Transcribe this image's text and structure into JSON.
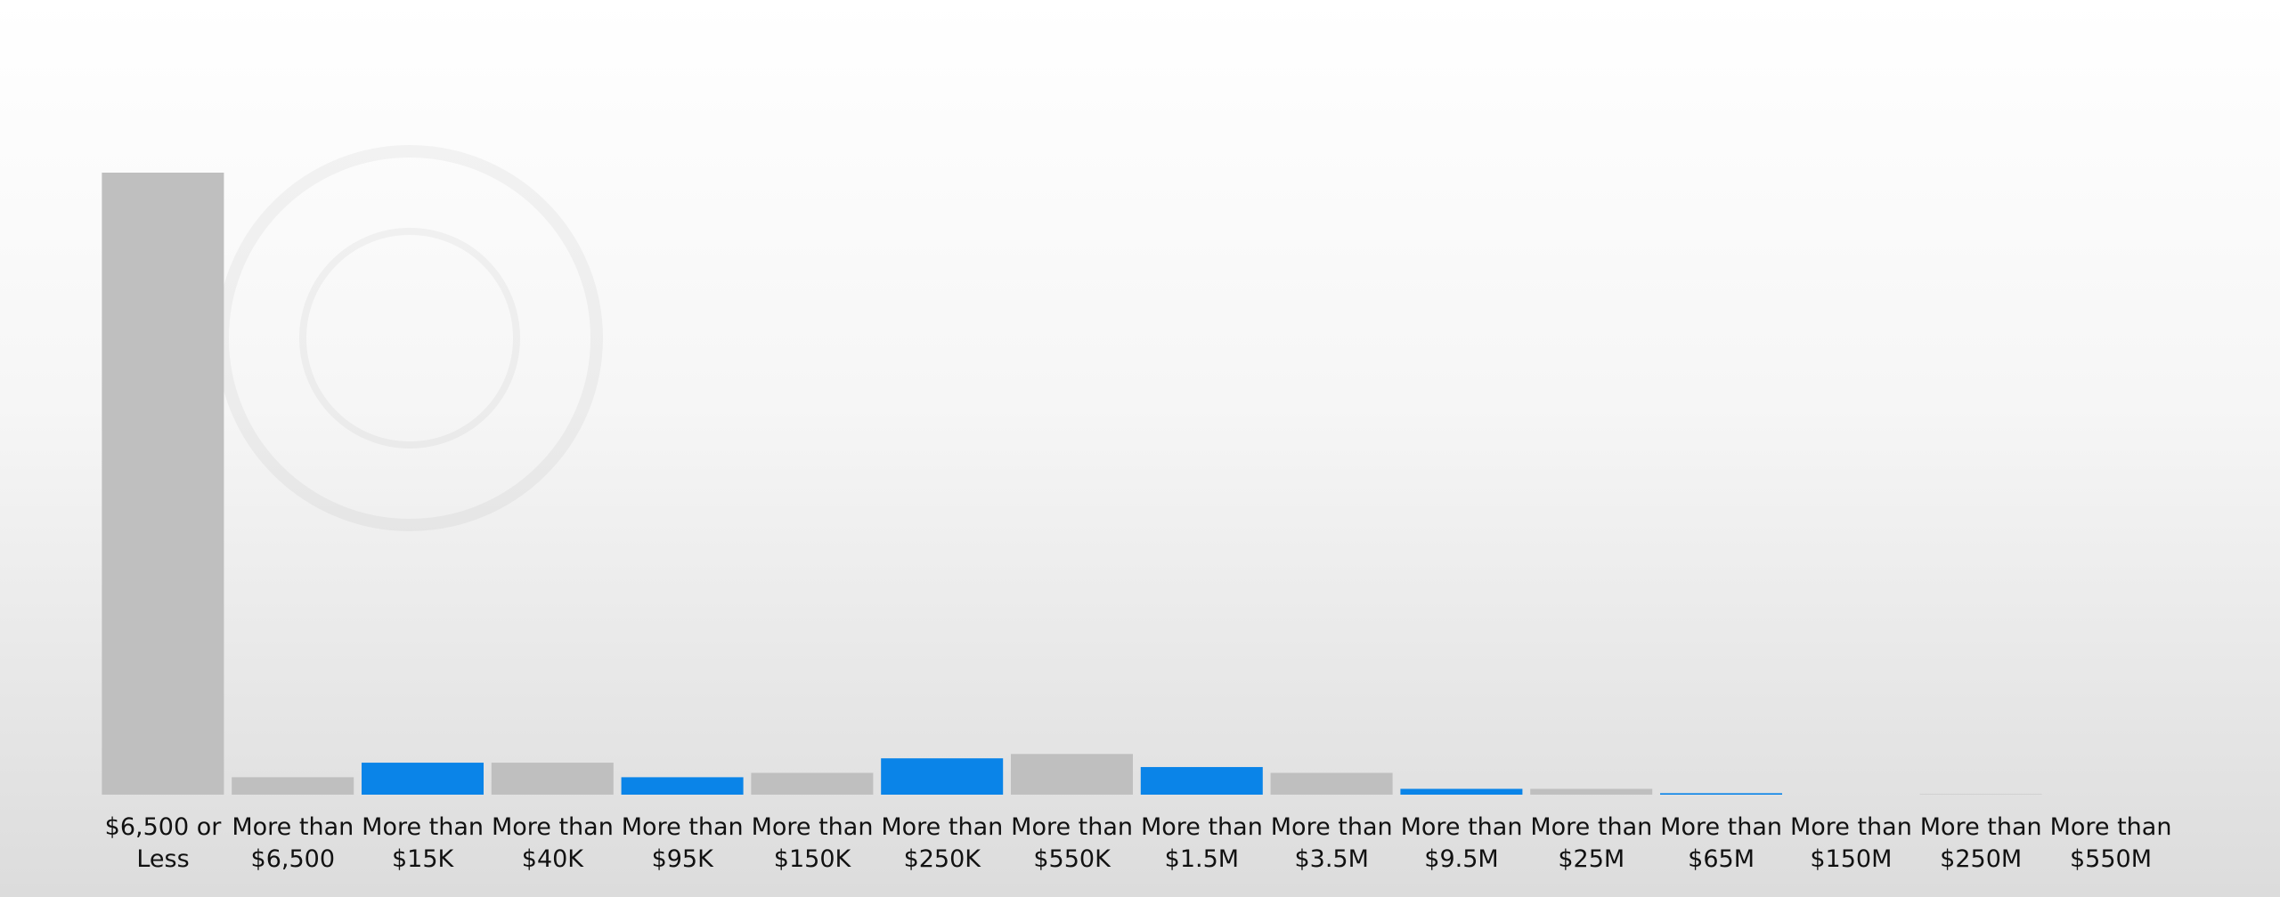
{
  "chart_data": {
    "type": "bar",
    "categories": [
      "$6,500 or Less",
      "More than $6,500",
      "More than $15K",
      "More than $40K",
      "More than $95K",
      "More than $150K",
      "More than $250K",
      "More than $550K",
      "More than $1.5M",
      "More than $3.5M",
      "More than $9.5M",
      "More than $25M",
      "More than $65M",
      "More than $150M",
      "More than $250M",
      "More than $550M"
    ],
    "values": [
      428,
      12,
      22,
      22,
      12,
      15,
      25,
      28,
      19,
      15,
      4,
      4,
      1,
      0,
      0.3,
      0
    ],
    "colors": [
      "#bfbfbf",
      "#bfbfbf",
      "#0a84e8",
      "#bfbfbf",
      "#0a84e8",
      "#bfbfbf",
      "#0a84e8",
      "#bfbfbf",
      "#0a84e8",
      "#bfbfbf",
      "#0a84e8",
      "#bfbfbf",
      "#0a84e8",
      "#bfbfbf",
      "#bfbfbf",
      "#bfbfbf"
    ],
    "ylim": [
      0,
      428
    ]
  }
}
